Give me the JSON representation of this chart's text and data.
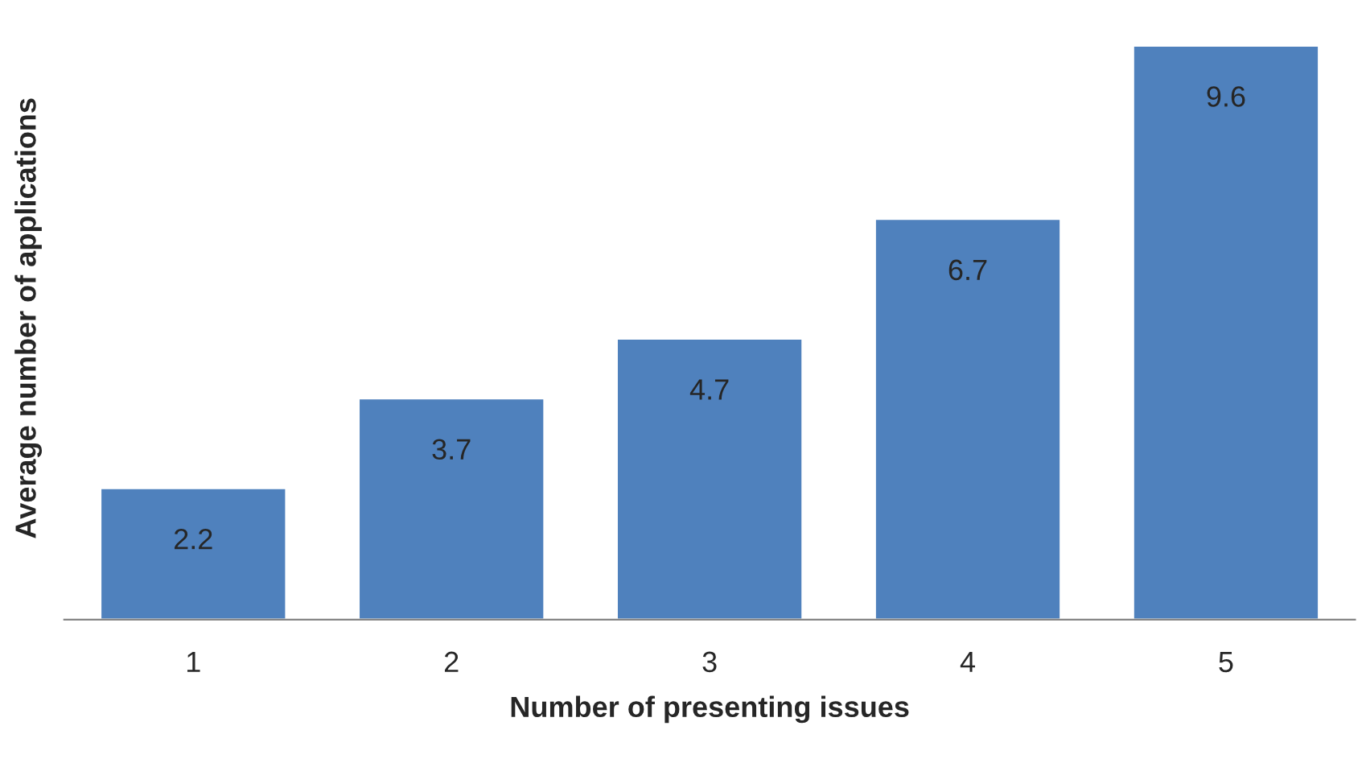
{
  "chart_data": {
    "type": "bar",
    "xlabel": "Number of presenting issues",
    "ylabel": "Average number of applications",
    "categories": [
      "1",
      "2",
      "3",
      "4",
      "5"
    ],
    "values": [
      2.2,
      3.7,
      4.7,
      6.7,
      9.6
    ],
    "color": "#4f81bd",
    "data_labels": true,
    "grid": false,
    "legend": false,
    "tick_labels": "x"
  }
}
